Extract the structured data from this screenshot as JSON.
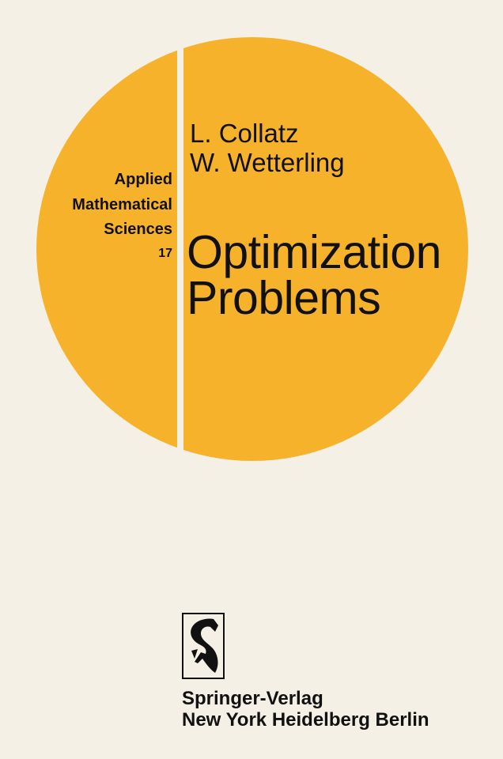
{
  "cover": {
    "authors": [
      "L. Collatz",
      "W. Wetterling"
    ],
    "series": {
      "line1": "Applied",
      "line2": "Mathematical",
      "line3": "Sciences",
      "number": "17"
    },
    "title": {
      "line1": "Optimization",
      "line2": "Problems"
    },
    "publisher": {
      "name": "Springer-Verlag",
      "cities": "New York Heidelberg Berlin",
      "logo_icon": "springer-knight-logo"
    },
    "colors": {
      "disc": "#f7b22c",
      "background": "#f4f0e6",
      "text": "#111111"
    }
  }
}
